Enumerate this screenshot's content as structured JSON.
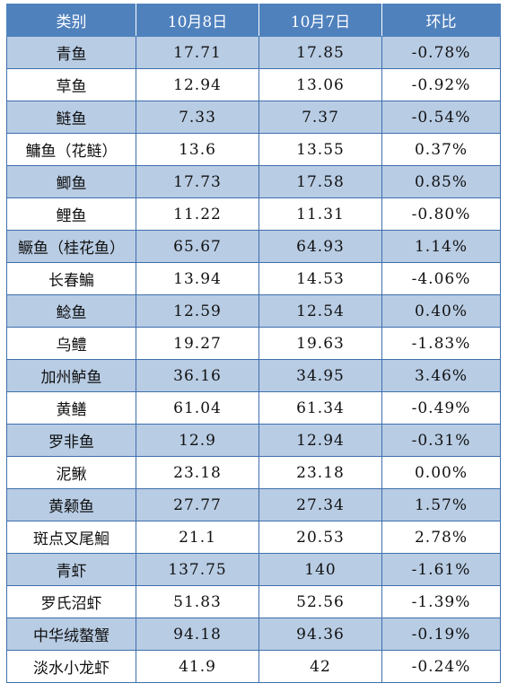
{
  "table": {
    "headers": [
      "类别",
      "10月8日",
      "10月7日",
      "环比"
    ],
    "rows": [
      [
        "青鱼",
        "17.71",
        "17.85",
        "-0.78%"
      ],
      [
        "草鱼",
        "12.94",
        "13.06",
        "-0.92%"
      ],
      [
        "鲢鱼",
        "7.33",
        "7.37",
        "-0.54%"
      ],
      [
        "鳙鱼（花鲢）",
        "13.6",
        "13.55",
        "0.37%"
      ],
      [
        "鲫鱼",
        "17.73",
        "17.58",
        "0.85%"
      ],
      [
        "鲤鱼",
        "11.22",
        "11.31",
        "-0.80%"
      ],
      [
        "鳜鱼（桂花鱼）",
        "65.67",
        "64.93",
        "1.14%"
      ],
      [
        "长春鳊",
        "13.94",
        "14.53",
        "-4.06%"
      ],
      [
        "鲶鱼",
        "12.59",
        "12.54",
        "0.40%"
      ],
      [
        "乌鳢",
        "19.27",
        "19.63",
        "-1.83%"
      ],
      [
        "加州鲈鱼",
        "36.16",
        "34.95",
        "3.46%"
      ],
      [
        "黄鳝",
        "61.04",
        "61.34",
        "-0.49%"
      ],
      [
        "罗非鱼",
        "12.9",
        "12.94",
        "-0.31%"
      ],
      [
        "泥鳅",
        "23.18",
        "23.18",
        "0.00%"
      ],
      [
        "黄颡鱼",
        "27.77",
        "27.34",
        "1.57%"
      ],
      [
        "斑点叉尾鮰",
        "21.1",
        "20.53",
        "2.78%"
      ],
      [
        "青虾",
        "137.75",
        "140",
        "-1.61%"
      ],
      [
        "罗氏沼虾",
        "51.83",
        "52.56",
        "-1.39%"
      ],
      [
        "中华绒螯蟹",
        "94.18",
        "94.36",
        "-0.19%"
      ],
      [
        "淡水小龙虾",
        "41.9",
        "42",
        "-0.24%"
      ]
    ]
  },
  "colors": {
    "header_bg": "#4f81bd",
    "band_bg": "#b8cce4",
    "plain_bg": "#ffffff",
    "border": "#3f6fad"
  }
}
